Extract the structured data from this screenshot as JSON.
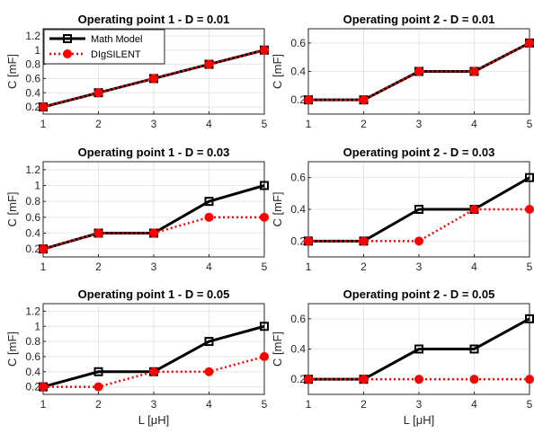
{
  "chart_data": [
    {
      "type": "line",
      "title": "Operating point 1 - D = 0.01",
      "ylabel": "C [mF]",
      "x": [
        1,
        2,
        3,
        4,
        5
      ],
      "xlim": [
        1,
        5
      ],
      "ylim": [
        0.1,
        1.3
      ],
      "yticks": [
        "0.2",
        "0.4",
        "0.6",
        "0.8",
        "1",
        "1.2"
      ],
      "grid": true,
      "legend": "top-left",
      "series": [
        {
          "name": "Math Model",
          "values": [
            0.2,
            0.4,
            0.6,
            0.8,
            1.0
          ],
          "color": "#000000",
          "style": "solid",
          "marker": "square"
        },
        {
          "name": "DIgSILENT",
          "values": [
            0.2,
            0.4,
            0.6,
            0.8,
            1.0
          ],
          "color": "#ff0000",
          "style": "dotted",
          "marker": "circle"
        }
      ]
    },
    {
      "type": "line",
      "title": "Operating point 2 - D = 0.01",
      "ylabel": "C [mF]",
      "x": [
        1,
        2,
        3,
        4,
        5
      ],
      "xlim": [
        1,
        5
      ],
      "ylim": [
        0.1,
        0.7
      ],
      "yticks": [
        "0.2",
        "0.4",
        "0.6"
      ],
      "grid": true,
      "series": [
        {
          "name": "Math Model",
          "values": [
            0.2,
            0.2,
            0.4,
            0.4,
            0.6
          ],
          "color": "#000000",
          "style": "solid",
          "marker": "square"
        },
        {
          "name": "DIgSILENT",
          "values": [
            0.2,
            0.2,
            0.4,
            0.4,
            0.6
          ],
          "color": "#ff0000",
          "style": "dotted",
          "marker": "circle"
        }
      ]
    },
    {
      "type": "line",
      "title": "Operating point 1 - D = 0.03",
      "ylabel": "C [mF]",
      "x": [
        1,
        2,
        3,
        4,
        5
      ],
      "xlim": [
        1,
        5
      ],
      "ylim": [
        0.1,
        1.3
      ],
      "yticks": [
        "0.2",
        "0.4",
        "0.6",
        "0.8",
        "1",
        "1.2"
      ],
      "grid": true,
      "series": [
        {
          "name": "Math Model",
          "values": [
            0.2,
            0.4,
            0.4,
            0.8,
            1.0
          ],
          "color": "#000000",
          "style": "solid",
          "marker": "square"
        },
        {
          "name": "DIgSILENT",
          "values": [
            0.2,
            0.4,
            0.4,
            0.6,
            0.6
          ],
          "color": "#ff0000",
          "style": "dotted",
          "marker": "circle"
        }
      ]
    },
    {
      "type": "line",
      "title": "Operating point 2 - D = 0.03",
      "ylabel": "C [mF]",
      "x": [
        1,
        2,
        3,
        4,
        5
      ],
      "xlim": [
        1,
        5
      ],
      "ylim": [
        0.1,
        0.7
      ],
      "yticks": [
        "0.2",
        "0.4",
        "0.6"
      ],
      "grid": true,
      "series": [
        {
          "name": "Math Model",
          "values": [
            0.2,
            0.2,
            0.4,
            0.4,
            0.6
          ],
          "color": "#000000",
          "style": "solid",
          "marker": "square"
        },
        {
          "name": "DIgSILENT",
          "values": [
            0.2,
            0.2,
            0.2,
            0.4,
            0.4
          ],
          "color": "#ff0000",
          "style": "dotted",
          "marker": "circle"
        }
      ]
    },
    {
      "type": "line",
      "title": "Operating point 1 - D = 0.05",
      "ylabel": "C [mF]",
      "xlabel": "L [μH]",
      "x": [
        1,
        2,
        3,
        4,
        5
      ],
      "xlim": [
        1,
        5
      ],
      "ylim": [
        0.1,
        1.3
      ],
      "yticks": [
        "0.2",
        "0.4",
        "0.6",
        "0.8",
        "1",
        "1.2"
      ],
      "grid": true,
      "series": [
        {
          "name": "Math Model",
          "values": [
            0.2,
            0.4,
            0.4,
            0.8,
            1.0
          ],
          "color": "#000000",
          "style": "solid",
          "marker": "square"
        },
        {
          "name": "DIgSILENT",
          "values": [
            0.2,
            0.2,
            0.4,
            0.4,
            0.6
          ],
          "color": "#ff0000",
          "style": "dotted",
          "marker": "circle"
        }
      ]
    },
    {
      "type": "line",
      "title": "Operating point 2 - D = 0.05",
      "ylabel": "C [mF]",
      "xlabel": "L [μH]",
      "x": [
        1,
        2,
        3,
        4,
        5
      ],
      "xlim": [
        1,
        5
      ],
      "ylim": [
        0.1,
        0.7
      ],
      "yticks": [
        "0.2",
        "0.4",
        "0.6"
      ],
      "grid": true,
      "series": [
        {
          "name": "Math Model",
          "values": [
            0.2,
            0.2,
            0.4,
            0.4,
            0.6
          ],
          "color": "#000000",
          "style": "solid",
          "marker": "square"
        },
        {
          "name": "DIgSILENT",
          "values": [
            0.2,
            0.2,
            0.2,
            0.2,
            0.2
          ],
          "color": "#ff0000",
          "style": "dotted",
          "marker": "circle"
        }
      ]
    }
  ]
}
